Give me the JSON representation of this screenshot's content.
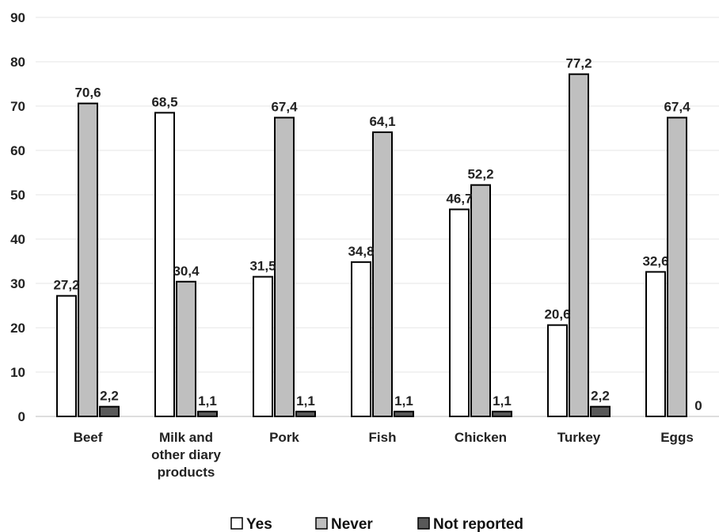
{
  "chart_data": {
    "type": "bar",
    "categories": [
      [
        "Beef"
      ],
      [
        "Milk and",
        "other diary",
        "products"
      ],
      [
        "Pork"
      ],
      [
        "Fish"
      ],
      [
        "Chicken"
      ],
      [
        "Turkey"
      ],
      [
        "Eggs"
      ]
    ],
    "series": [
      {
        "name": "Yes",
        "color": "#ffffff",
        "values": [
          27.2,
          68.5,
          31.5,
          34.8,
          46.7,
          20.6,
          32.6
        ],
        "labels": [
          "27,2",
          "68,5",
          "31,5",
          "34,8",
          "46,7",
          "20,6",
          "32,6"
        ]
      },
      {
        "name": "Never",
        "color": "#bfbfbf",
        "values": [
          70.6,
          30.4,
          67.4,
          64.1,
          52.2,
          77.2,
          67.4
        ],
        "labels": [
          "70,6",
          "30,4",
          "67,4",
          "64,1",
          "52,2",
          "77,2",
          "67,4"
        ]
      },
      {
        "name": "Not reported",
        "color": "#595959",
        "values": [
          2.2,
          1.1,
          1.1,
          1.1,
          1.1,
          2.2,
          0
        ],
        "labels": [
          "2,2",
          "1,1",
          "1,1",
          "1,1",
          "1,1",
          "2,2",
          "0"
        ]
      }
    ],
    "ylim": [
      0,
      90
    ],
    "yticks": [
      0,
      10,
      20,
      30,
      40,
      50,
      60,
      70,
      80,
      90
    ],
    "grid": true,
    "legend_position": "bottom"
  }
}
